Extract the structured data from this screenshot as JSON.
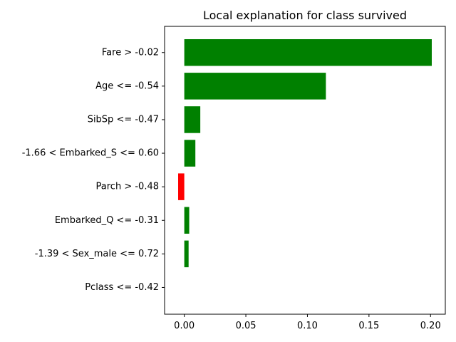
{
  "chart_data": {
    "type": "bar",
    "orientation": "horizontal",
    "title": "Local explanation for class survived",
    "xlabel": "",
    "ylabel": "",
    "categories": [
      "Fare > -0.02",
      "Age <= -0.54",
      "SibSp <= -0.47",
      "-1.66 < Embarked_S <= 0.60",
      "Parch > -0.48",
      "Embarked_Q <= -0.31",
      "-1.39 < Sex_male <= 0.72",
      "Pclass <= -0.42"
    ],
    "values": [
      0.201,
      0.115,
      0.013,
      0.009,
      -0.005,
      0.004,
      0.0035,
      0.0
    ],
    "xlim": [
      -0.016,
      0.212
    ],
    "xticks": [
      0.0,
      0.05,
      0.1,
      0.15,
      0.2
    ],
    "xtick_labels": [
      "0.00",
      "0.05",
      "0.10",
      "0.15",
      "0.20"
    ],
    "grid": false,
    "colors": {
      "positive": "#008000",
      "negative": "#ff0000"
    }
  }
}
